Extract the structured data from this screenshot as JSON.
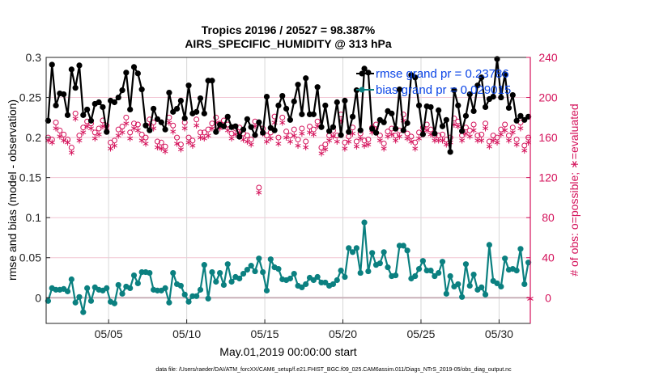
{
  "chart_data": {
    "type": "line",
    "title": "Tropics 20196 / 20527 = 98.387%",
    "subtitle": "AIRS_SPECIFIC_HUMIDITY @ 313 hPa",
    "xlabel": "May.01,2019 00:00:00 start",
    "ylabel": "rmse and bias (model - observation)",
    "y2label": "# of obs: o=possible; ∗=evaluated",
    "footnote": "data file: /Users/raeder/DAI/ATM_forcXX/CAM6_setup/f.e21.FHIST_BGC.f09_025.CAM6assim.011/Diags_NTrS_2019-05/obs_diag_output.nc",
    "xlim_days": [
      0,
      31
    ],
    "ylim": [
      -0.032,
      0.3
    ],
    "y2lim": [
      -25.6,
      240
    ],
    "yticks": [
      0,
      0.05,
      0.1,
      0.15,
      0.2,
      0.25,
      0.3
    ],
    "ytick_labels": [
      "0",
      "0.05",
      "0.1",
      "0.15",
      "0.2",
      "0.25",
      "0.3"
    ],
    "y2ticks": [
      0,
      40,
      80,
      120,
      160,
      200,
      240
    ],
    "y2tick_labels": [
      "0",
      "40",
      "80",
      "120",
      "160",
      "200",
      "240"
    ],
    "xticks_days": [
      4,
      9,
      14,
      19,
      24,
      29
    ],
    "xtick_labels": [
      "05/05",
      "05/10",
      "05/15",
      "05/20",
      "05/25",
      "05/30"
    ],
    "grid": true,
    "legend_position": "top-right",
    "colors": {
      "rmse": "#000000",
      "bias": "#0b8080",
      "obs": "#d4115a",
      "legend_text": "#0a44e6",
      "grid": "#f2c6d4",
      "zero_line": "#c8b0b8"
    },
    "series": [
      {
        "name": "rmse grand pr = 0.23786",
        "values": [
          0.221,
          0.291,
          0.24,
          0.255,
          0.254,
          0.228,
          0.285,
          0.262,
          0.29,
          0.228,
          0.235,
          0.221,
          0.242,
          0.244,
          0.238,
          0.207,
          0.246,
          0.244,
          0.25,
          0.259,
          0.281,
          0.235,
          0.288,
          0.28,
          0.26,
          0.215,
          0.209,
          0.236,
          0.223,
          0.219,
          0.21,
          0.256,
          0.232,
          0.236,
          0.246,
          0.224,
          0.265,
          0.23,
          0.232,
          0.249,
          0.23,
          0.271,
          0.271,
          0.207,
          0.216,
          0.214,
          0.226,
          0.213,
          0.214,
          0.201,
          0.21,
          0.223,
          0.213,
          0.203,
          0.219,
          0.206,
          0.251,
          0.212,
          0.209,
          0.24,
          0.252,
          0.236,
          0.222,
          0.245,
          0.266,
          0.229,
          0.274,
          0.229,
          0.229,
          0.263,
          0.213,
          0.24,
          0.208,
          0.213,
          0.244,
          0.203,
          0.246,
          0.207,
          0.226,
          0.259,
          0.209,
          0.286,
          0.281,
          0.211,
          0.206,
          0.222,
          0.219,
          0.233,
          0.23,
          0.211,
          0.26,
          0.209,
          0.218,
          0.278,
          0.275,
          0.24,
          0.204,
          0.239,
          0.238,
          0.205,
          0.234,
          0.214,
          0.222,
          0.182,
          0.259,
          0.24,
          0.208,
          0.227,
          0.254,
          0.233,
          0.265,
          0.275,
          0.238,
          0.248,
          0.251,
          0.298,
          0.25,
          0.279,
          0.237,
          0.253,
          0.221,
          0.227,
          0.222,
          0.226
        ]
      },
      {
        "name": "bias grand pr = 0.029015",
        "values": [
          -0.004,
          0.012,
          0.01,
          0.01,
          0.011,
          0.008,
          0.023,
          -0.006,
          0.001,
          -0.018,
          0.012,
          -0.004,
          0.013,
          0.01,
          0.009,
          0.012,
          -0.005,
          -0.007,
          0.016,
          0.005,
          0.014,
          0.012,
          0.028,
          0.018,
          0.032,
          0.032,
          0.031,
          0.01,
          0.009,
          0.009,
          0.012,
          -0.006,
          0.031,
          0.017,
          0.015,
          0.004,
          -0.005,
          0.002,
          0.002,
          0.01,
          0.041,
          -0.001,
          0.032,
          0.02,
          0.031,
          0.016,
          0.042,
          0.02,
          0.026,
          0.024,
          0.03,
          0.035,
          0.04,
          0.033,
          0.049,
          0.032,
          0.009,
          0.048,
          0.038,
          0.036,
          0.023,
          0.022,
          0.024,
          0.03,
          0.015,
          0.013,
          0.017,
          0.025,
          0.022,
          0.026,
          0.019,
          0.019,
          0.015,
          0.017,
          0.022,
          0.034,
          0.026,
          0.062,
          0.057,
          0.062,
          0.031,
          0.094,
          0.033,
          0.056,
          0.041,
          0.043,
          0.057,
          0.038,
          0.027,
          0.028,
          0.065,
          0.065,
          0.059,
          0.024,
          0.027,
          0.036,
          0.046,
          0.034,
          0.034,
          0.027,
          0.031,
          0.045,
          0.005,
          0.027,
          0.014,
          0.017,
          0.001,
          0.042,
          0.015,
          0.029,
          0.01,
          0.013,
          0.004,
          0.066,
          0.021,
          0.018,
          0.014,
          0.049,
          0.035,
          0.036,
          0.034,
          0.061,
          0.017,
          0.044
        ]
      },
      {
        "name": "# possible obs",
        "axis": "right",
        "values": [
          160,
          158,
          175,
          167,
          163,
          158,
          150,
          184,
          162,
          170,
          176,
          174,
          165,
          169,
          177,
          172,
          155,
          157,
          168,
          171,
          180,
          165,
          174,
          173,
          163,
          160,
          178,
          175,
          156,
          155,
          151,
          180,
          172,
          160,
          153,
          175,
          160,
          157,
          178,
          165,
          165,
          168,
          174,
          180,
          174,
          177,
          173,
          164,
          169,
          170,
          164,
          162,
          158,
          176,
          110,
          169,
          162,
          165,
          181,
          160,
          180,
          166,
          162,
          168,
          158,
          169,
          156,
          171,
          168,
          176,
          150,
          153,
          162,
          167,
          162,
          183,
          155,
          161,
          170,
          156,
          164,
          157,
          158,
          170,
          173,
          162,
          154,
          166,
          169,
          162,
          167,
          183,
          164,
          161,
          155,
          165,
          170,
          173,
          168,
          162,
          162,
          163,
          158,
          160,
          179,
          176,
          162,
          170,
          167,
          173,
          162,
          163,
          174,
          156,
          162,
          160,
          168,
          173,
          162,
          170,
          158,
          175,
          152,
          160
        ]
      },
      {
        "name": "# evaluated obs",
        "axis": "right",
        "values": [
          158,
          156,
          170,
          162,
          158,
          156,
          146,
          180,
          158,
          166,
          172,
          170,
          160,
          164,
          172,
          168,
          150,
          153,
          163,
          166,
          175,
          160,
          170,
          168,
          158,
          155,
          174,
          170,
          151,
          150,
          147,
          176,
          167,
          155,
          149,
          170,
          156,
          153,
          173,
          161,
          160,
          163,
          170,
          176,
          170,
          172,
          168,
          160,
          164,
          166,
          159,
          157,
          154,
          172,
          106,
          165,
          157,
          160,
          176,
          155,
          176,
          161,
          157,
          163,
          153,
          165,
          151,
          166,
          164,
          172,
          145,
          149,
          158,
          162,
          157,
          178,
          150,
          157,
          165,
          152,
          160,
          153,
          154,
          166,
          168,
          158,
          150,
          162,
          164,
          158,
          162,
          178,
          160,
          157,
          150,
          160,
          166,
          168,
          164,
          158,
          158,
          158,
          154,
          156,
          174,
          172,
          158,
          165,
          162,
          168,
          158,
          158,
          170,
          152,
          158,
          156,
          164,
          168,
          158,
          166,
          154,
          170,
          148,
          156
        ]
      }
    ],
    "end_marker": {
      "day": 31,
      "value": 0,
      "axis": "right"
    }
  }
}
